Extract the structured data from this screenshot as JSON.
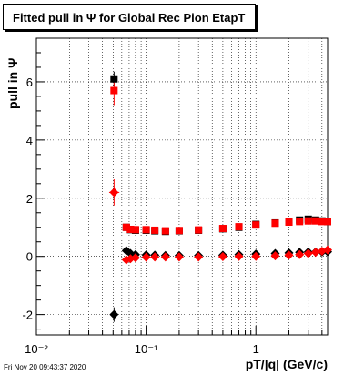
{
  "title": "Fitted pull in Ψ  for Global Rec Pion EtapT",
  "footer": "Fri Nov 20 09:43:37 2020",
  "chart_data": {
    "type": "scatter",
    "title": "Fitted pull in Ψ  for Global Rec Pion EtapT",
    "xlabel": "pT/|q| (GeV/c)",
    "ylabel": "pull in  Ψ",
    "x_scale": "log",
    "xlim": [
      0.01,
      4.5
    ],
    "ylim": [
      -2.7,
      7.5
    ],
    "grid": true,
    "y_ticks": [
      "-2",
      "0",
      "2",
      "4",
      "6"
    ],
    "x_tick_labels": [
      "10⁻²",
      "10⁻¹",
      "1"
    ],
    "series": [
      {
        "color": "#000000",
        "marker": "square",
        "x": [
          0.051,
          0.066,
          0.072,
          0.08,
          0.1,
          0.12,
          0.15,
          0.2,
          0.3,
          0.5,
          0.7,
          1.0,
          1.5,
          2.0,
          2.5,
          3.0,
          3.5,
          4.0,
          4.5
        ],
        "y": [
          6.1,
          1.0,
          0.92,
          0.9,
          0.9,
          0.88,
          0.86,
          0.88,
          0.9,
          0.95,
          1.0,
          1.1,
          1.15,
          1.2,
          1.25,
          1.28,
          1.25,
          1.22,
          1.2
        ]
      },
      {
        "color": "#ff0000",
        "marker": "square",
        "x": [
          0.051,
          0.066,
          0.072,
          0.08,
          0.1,
          0.12,
          0.15,
          0.2,
          0.3,
          0.5,
          0.7,
          1.0,
          1.5,
          2.0,
          2.5,
          3.0,
          3.5,
          4.0,
          4.5
        ],
        "y": [
          5.7,
          1.0,
          0.93,
          0.92,
          0.92,
          0.9,
          0.88,
          0.89,
          0.91,
          0.96,
          1.02,
          1.08,
          1.14,
          1.18,
          1.2,
          1.22,
          1.22,
          1.2,
          1.2
        ]
      },
      {
        "color": "#000000",
        "marker": "diamond",
        "x": [
          0.051,
          0.066,
          0.072,
          0.08,
          0.1,
          0.12,
          0.15,
          0.2,
          0.3,
          0.5,
          0.7,
          1.0,
          1.5,
          2.0,
          2.5,
          3.0,
          3.5,
          4.0,
          4.5
        ],
        "y": [
          -2.0,
          0.2,
          0.1,
          0.06,
          0.05,
          0.04,
          0.03,
          0.03,
          0.03,
          0.04,
          0.06,
          0.08,
          0.1,
          0.12,
          0.14,
          0.15,
          0.15,
          0.15,
          0.16
        ]
      },
      {
        "color": "#ff0000",
        "marker": "diamond",
        "x": [
          0.051,
          0.066,
          0.072,
          0.08,
          0.1,
          0.12,
          0.15,
          0.2,
          0.3,
          0.5,
          0.7,
          1.0,
          1.5,
          2.0,
          2.5,
          3.0,
          3.5,
          4.0,
          4.5
        ],
        "y": [
          2.2,
          -0.12,
          -0.08,
          -0.05,
          -0.03,
          -0.02,
          -0.02,
          -0.02,
          -0.02,
          -0.01,
          0.0,
          0.0,
          0.02,
          0.04,
          0.06,
          0.1,
          0.14,
          0.18,
          0.22
        ]
      }
    ],
    "error_bars": {
      "x": 0.051,
      "y": [
        6.1,
        5.7,
        -2.0,
        2.2
      ],
      "yerr": [
        0.25,
        0.5,
        0.25,
        0.45
      ]
    }
  }
}
